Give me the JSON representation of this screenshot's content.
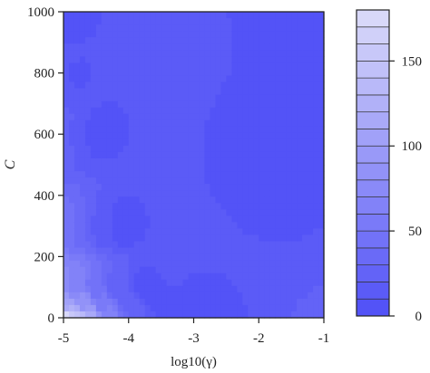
{
  "chart_data": {
    "type": "heatmap",
    "title": "",
    "xlabel": "log10(γ)",
    "ylabel": "C",
    "xlim": [
      -5,
      -1
    ],
    "ylim": [
      0,
      1000
    ],
    "x_ticks": [
      "-5",
      "-4",
      "-3",
      "-2",
      "-1"
    ],
    "y_ticks": [
      "0",
      "200",
      "400",
      "600",
      "800",
      "1000"
    ],
    "colorbar": {
      "range": [
        0,
        180
      ],
      "tick_labels": [
        "0",
        "50",
        "100",
        "150"
      ],
      "levels": [
        0,
        10,
        20,
        30,
        40,
        50,
        60,
        70,
        80,
        90,
        100,
        110,
        120,
        130,
        140,
        150,
        160,
        170,
        180
      ],
      "color_low": "#4f4ff7",
      "color_high": "#dcdcf9"
    },
    "grid": false,
    "contour_points": [
      {
        "x": -5.0,
        "y": 0,
        "value": 175
      },
      {
        "x": -4.8,
        "y": 0,
        "value": 150
      },
      {
        "x": -4.6,
        "y": 0,
        "value": 115
      },
      {
        "x": -4.3,
        "y": 0,
        "value": 70
      },
      {
        "x": -3.9,
        "y": 0,
        "value": 30
      },
      {
        "x": -3.5,
        "y": 0,
        "value": 10
      },
      {
        "x": -3.0,
        "y": 0,
        "value": 0
      },
      {
        "x": -5.0,
        "y": 50,
        "value": 110
      },
      {
        "x": -4.7,
        "y": 50,
        "value": 85
      },
      {
        "x": -4.4,
        "y": 50,
        "value": 55
      },
      {
        "x": -4.0,
        "y": 50,
        "value": 25
      },
      {
        "x": -3.6,
        "y": 50,
        "value": 8
      },
      {
        "x": -5.0,
        "y": 100,
        "value": 75
      },
      {
        "x": -4.8,
        "y": 100,
        "value": 60
      },
      {
        "x": -4.5,
        "y": 100,
        "value": 40
      },
      {
        "x": -4.2,
        "y": 100,
        "value": 20
      },
      {
        "x": -3.8,
        "y": 100,
        "value": 5
      },
      {
        "x": -5.0,
        "y": 300,
        "value": 50
      },
      {
        "x": -4.7,
        "y": 300,
        "value": 30
      },
      {
        "x": -4.4,
        "y": 300,
        "value": 12
      },
      {
        "x": -4.1,
        "y": 300,
        "value": 4
      },
      {
        "x": -5.0,
        "y": 600,
        "value": 30
      },
      {
        "x": -4.8,
        "y": 600,
        "value": 15
      },
      {
        "x": -4.5,
        "y": 600,
        "value": 5
      },
      {
        "x": -5.0,
        "y": 800,
        "value": 20
      },
      {
        "x": -4.85,
        "y": 800,
        "value": 8
      },
      {
        "x": -5.0,
        "y": 950,
        "value": 8
      },
      {
        "x": -2.0,
        "y": 500,
        "value": 0
      },
      {
        "x": -1.0,
        "y": 1000,
        "value": 0
      }
    ]
  }
}
